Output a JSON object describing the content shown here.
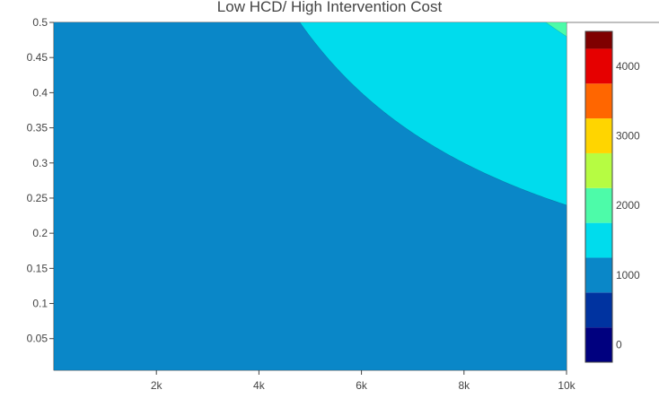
{
  "chart_data": {
    "type": "contour",
    "title": "Low HCD/ High Intervention Cost",
    "xlabel": "",
    "ylabel": "",
    "xlim": [
      0,
      10000
    ],
    "ylim": [
      0.005,
      0.5
    ],
    "x_ticks": [
      {
        "value": 2000,
        "label": "2k"
      },
      {
        "value": 4000,
        "label": "4k"
      },
      {
        "value": 6000,
        "label": "6k"
      },
      {
        "value": 8000,
        "label": "8k"
      },
      {
        "value": 10000,
        "label": "10k"
      }
    ],
    "y_ticks": [
      {
        "value": 0.05,
        "label": "0.05"
      },
      {
        "value": 0.1,
        "label": "0.1"
      },
      {
        "value": 0.15,
        "label": "0.15"
      },
      {
        "value": 0.2,
        "label": "0.2"
      },
      {
        "value": 0.25,
        "label": "0.25"
      },
      {
        "value": 0.3,
        "label": "0.3"
      },
      {
        "value": 0.35,
        "label": "0.35"
      },
      {
        "value": 0.4,
        "label": "0.4"
      },
      {
        "value": 0.45,
        "label": "0.45"
      },
      {
        "value": 0.5,
        "label": "0.5"
      }
    ],
    "contour_level_boundaries": [
      2400,
      4800,
      7200,
      9600,
      12000,
      14400,
      16800,
      19200,
      21600,
      24000
    ],
    "colorscale": [
      {
        "range": [
          -250,
          250
        ],
        "color": "#00007f"
      },
      {
        "range": [
          250,
          750
        ],
        "color": "#0033a0"
      },
      {
        "range": [
          750,
          1250
        ],
        "color": "#0a87c8"
      },
      {
        "range": [
          1250,
          1750
        ],
        "color": "#00dced"
      },
      {
        "range": [
          1750,
          2250
        ],
        "color": "#4dfba9"
      },
      {
        "range": [
          2250,
          2750
        ],
        "color": "#b6fc42"
      },
      {
        "range": [
          2750,
          3250
        ],
        "color": "#ffd500"
      },
      {
        "range": [
          3250,
          3750
        ],
        "color": "#ff6600"
      },
      {
        "range": [
          3750,
          4250
        ],
        "color": "#e60000"
      },
      {
        "range": [
          4250,
          4500
        ],
        "color": "#7f0000"
      }
    ],
    "colorbar_ticks": [
      {
        "value": 0,
        "label": "0"
      },
      {
        "value": 1000,
        "label": "1000"
      },
      {
        "value": 2000,
        "label": "2000"
      },
      {
        "value": 3000,
        "label": "3000"
      },
      {
        "value": 4000,
        "label": "4000"
      }
    ],
    "colorbar_range": [
      -250,
      4500
    ],
    "grid": false,
    "legend": "colorbar-right"
  }
}
